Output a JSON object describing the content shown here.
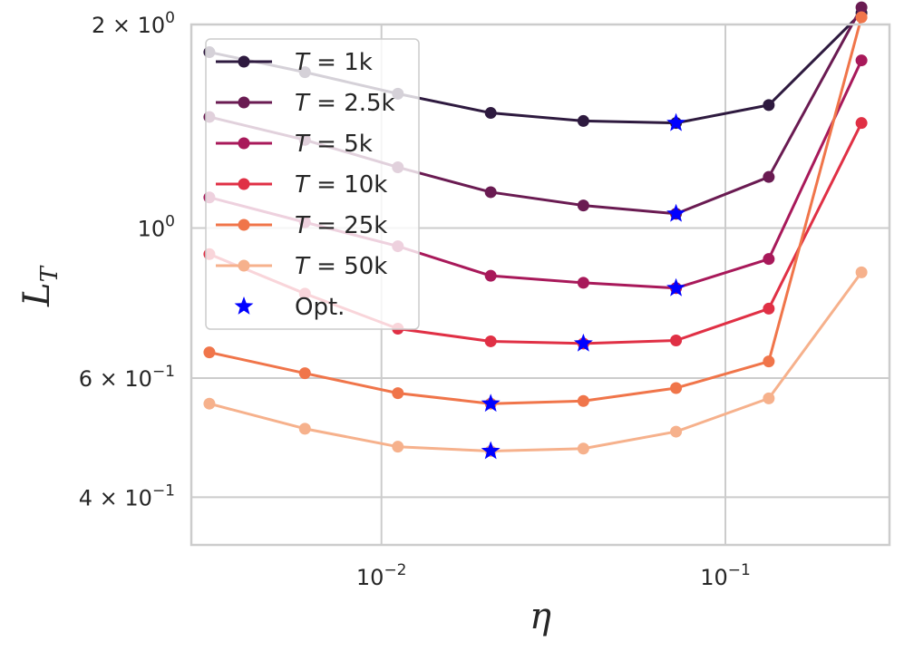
{
  "chart_data": {
    "type": "line",
    "xscale": "log",
    "yscale": "log",
    "xlabel": "η",
    "ylabel_main": "L",
    "ylabel_sub": "T",
    "xlim": [
      0.0028,
      0.3
    ],
    "ylim": [
      0.34,
      2.0
    ],
    "grid": true,
    "legend_position": "upper-left",
    "x": [
      0.00316,
      0.00599,
      0.01116,
      0.02078,
      0.03864,
      0.07186,
      0.1337,
      0.2487
    ],
    "x_ticks": [
      {
        "value": 0.01,
        "base": "10",
        "exp": "−2"
      },
      {
        "value": 0.1,
        "base": "10",
        "exp": "−1"
      }
    ],
    "y_ticks": [
      {
        "value": 2.0,
        "mant": "2 × ",
        "base": "10",
        "exp": "0"
      },
      {
        "value": 1.0,
        "mant": "",
        "base": "10",
        "exp": "0"
      },
      {
        "value": 0.6,
        "mant": "6 × ",
        "base": "10",
        "exp": "−1"
      },
      {
        "value": 0.4,
        "mant": "4 × ",
        "base": "10",
        "exp": "−1"
      }
    ],
    "series": [
      {
        "name": "T = 1k",
        "var": "T",
        "eq": " = 1k",
        "color": "#2e1a3f",
        "values": [
          1.82,
          1.7,
          1.58,
          1.48,
          1.44,
          1.43,
          1.52,
          2.08
        ],
        "optimum": {
          "x": 0.07186,
          "y": 1.43
        }
      },
      {
        "name": "T = 2.5k",
        "var": "T",
        "eq": " = 2.5k",
        "color": "#6a1b52",
        "values": [
          1.46,
          1.35,
          1.23,
          1.13,
          1.08,
          1.05,
          1.19,
          2.12
        ],
        "optimum": {
          "x": 0.07186,
          "y": 1.05
        }
      },
      {
        "name": "T = 5k",
        "var": "T",
        "eq": " = 5k",
        "color": "#a8195a",
        "values": [
          1.11,
          1.02,
          0.94,
          0.85,
          0.83,
          0.815,
          0.9,
          1.77
        ],
        "optimum": {
          "x": 0.07186,
          "y": 0.815
        }
      },
      {
        "name": "T = 10k",
        "var": "T",
        "eq": " = 10k",
        "color": "#e03045",
        "values": [
          0.915,
          0.8,
          0.71,
          0.68,
          0.675,
          0.682,
          0.76,
          1.43
        ],
        "optimum": {
          "x": 0.03864,
          "y": 0.675
        }
      },
      {
        "name": "T = 25k",
        "var": "T",
        "eq": " = 25k",
        "color": "#f0754a",
        "values": [
          0.655,
          0.61,
          0.57,
          0.55,
          0.555,
          0.58,
          0.635,
          2.05
        ],
        "optimum": {
          "x": 0.02078,
          "y": 0.55
        }
      },
      {
        "name": "T = 50k",
        "var": "T",
        "eq": " = 50k",
        "color": "#f6b18c",
        "values": [
          0.55,
          0.505,
          0.475,
          0.468,
          0.472,
          0.5,
          0.56,
          0.86
        ],
        "optimum": {
          "x": 0.02078,
          "y": 0.468
        }
      }
    ],
    "optimum_marker": {
      "label": "Opt.",
      "color": "#0000ff"
    }
  }
}
